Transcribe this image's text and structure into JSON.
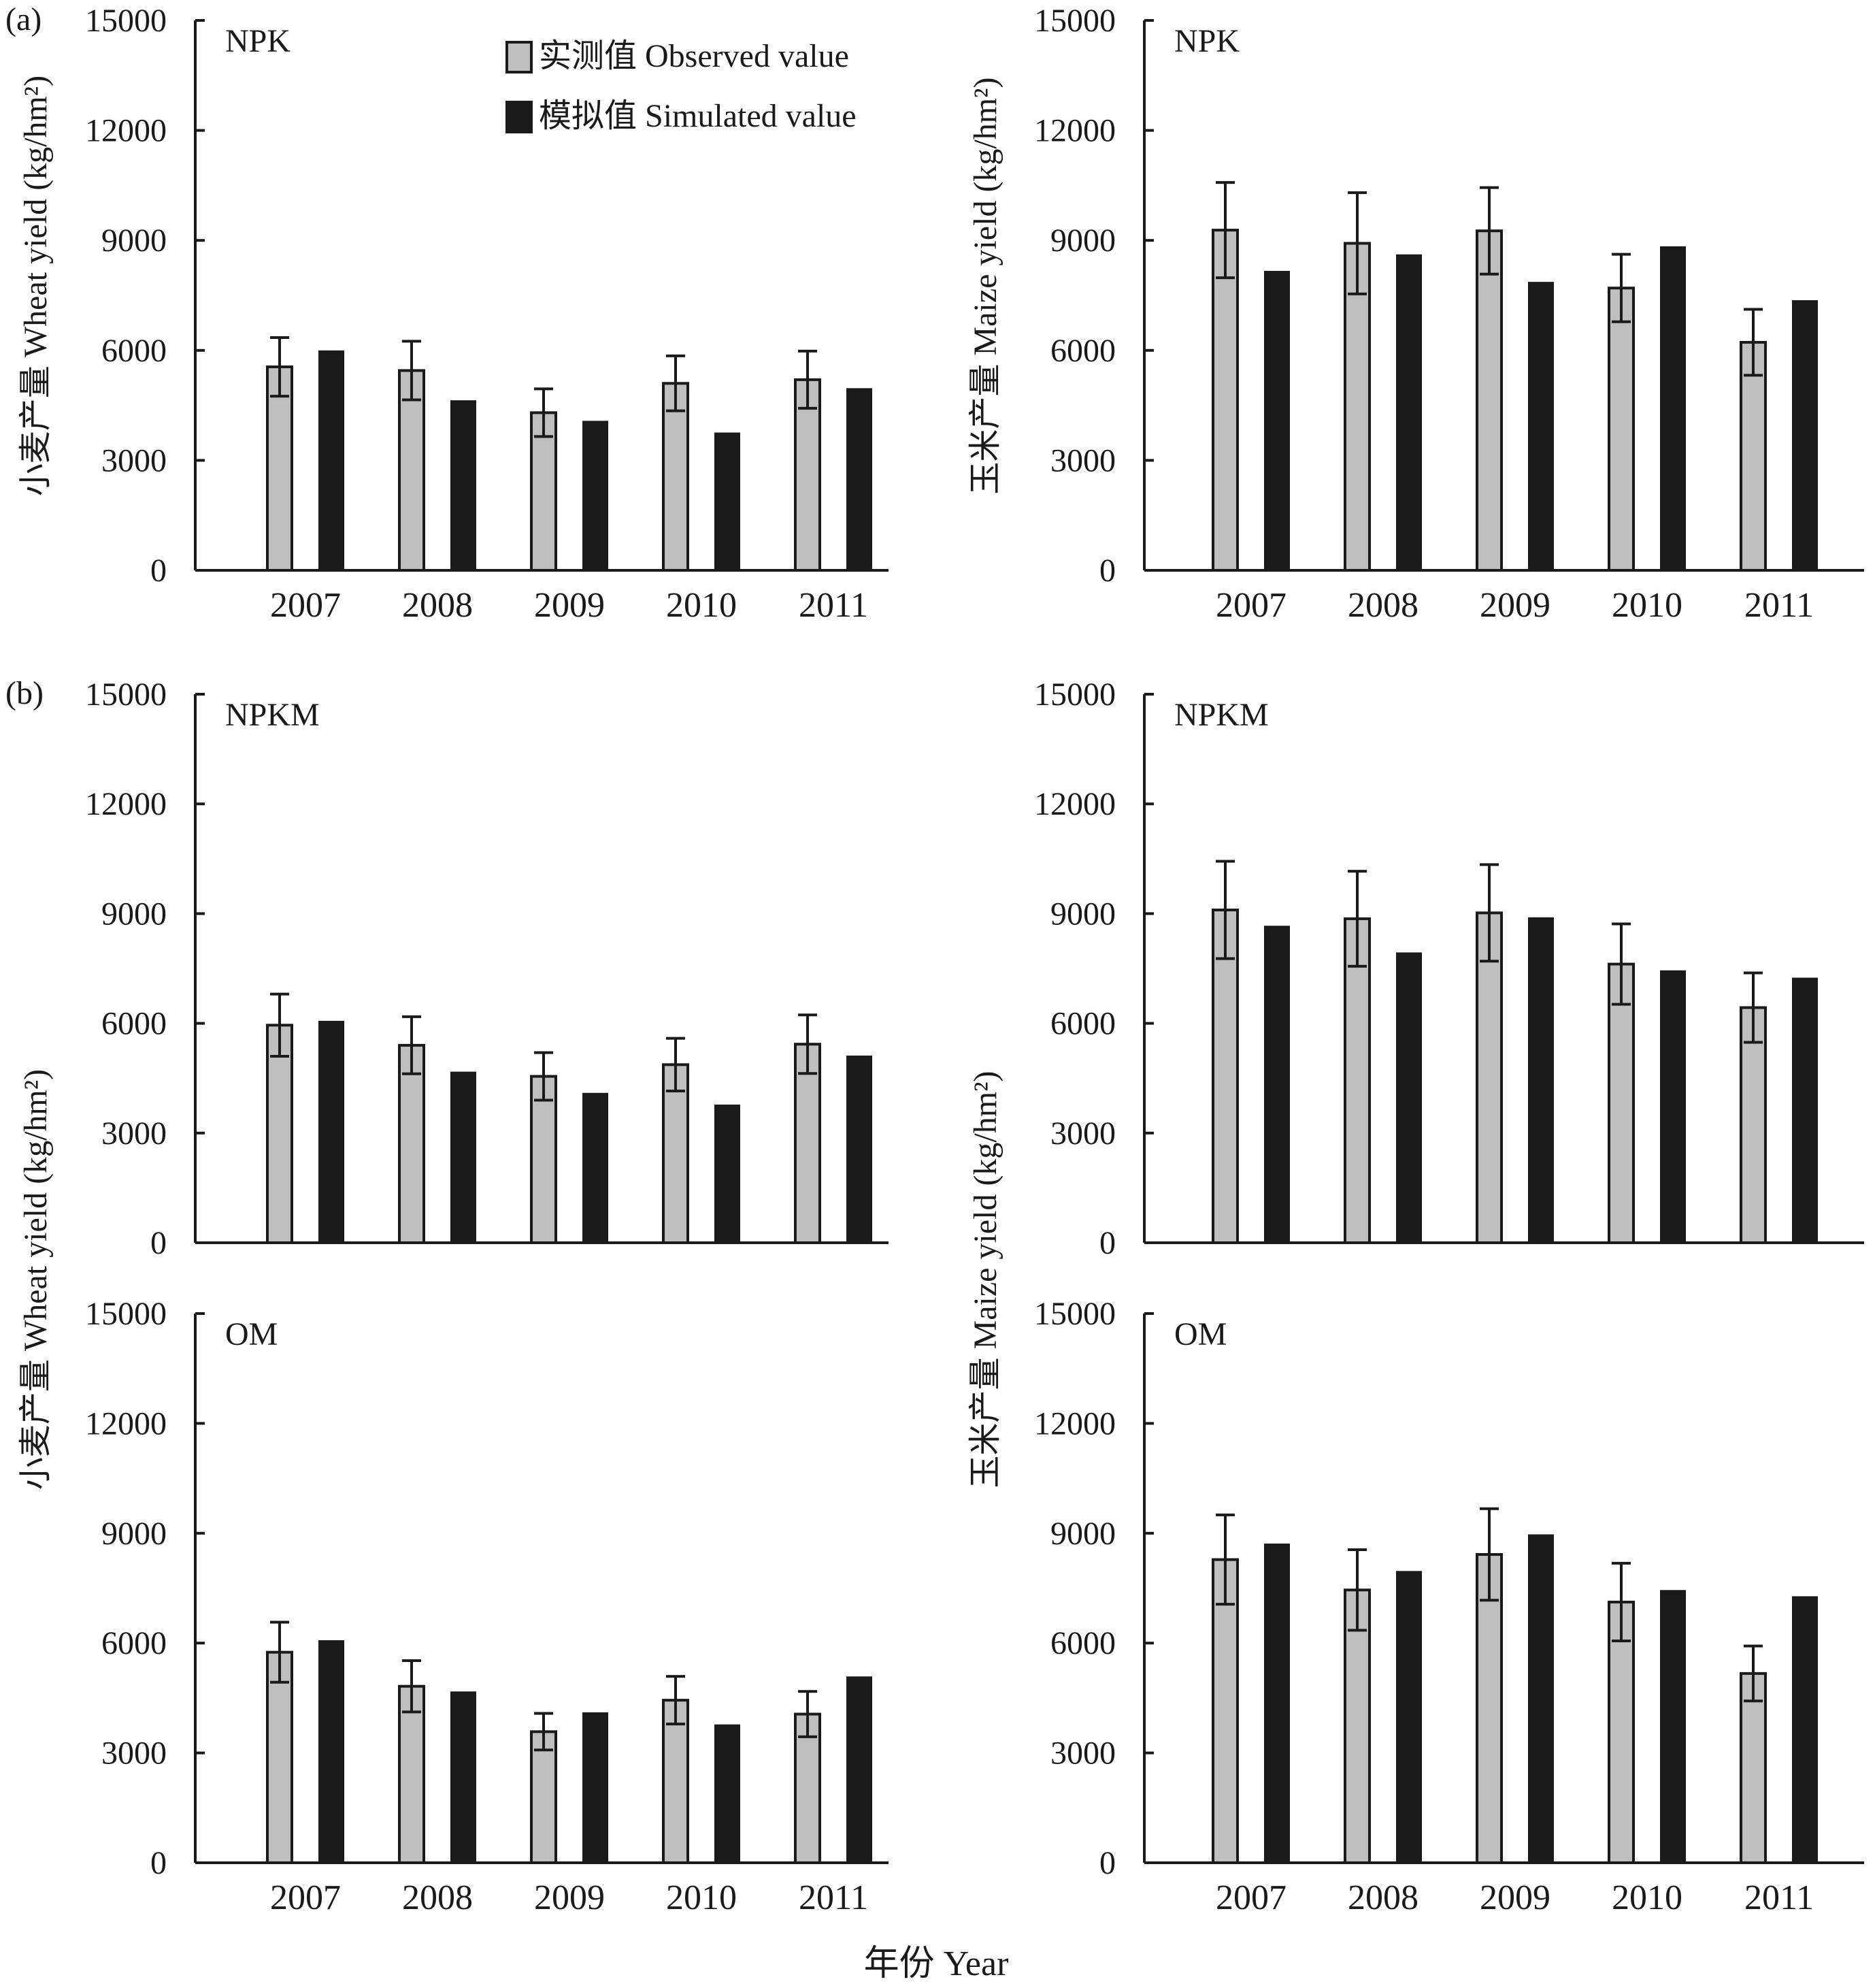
{
  "figure": {
    "x_axis_title": "年份 Year",
    "legend": {
      "observed": "实测值 Observed value",
      "simulated": "模拟值 Simulated value"
    },
    "colors": {
      "observed": "#bfbfbf",
      "simulated": "#1a1a1a",
      "axis": "#1a1a1a"
    },
    "group_labels": [
      "(a)",
      "(b)"
    ],
    "left_ylabel": "小麦产量 Wheat yield (kg/hm²)",
    "right_ylabel": "玉米产量 Maize yield (kg/hm²)"
  },
  "chart_data": [
    {
      "id": "a-wheat",
      "type": "bar",
      "panel_label": "(a)",
      "treatment": "NPK",
      "crop": "wheat",
      "ylabel": "小麦产量 Wheat yield (kg/hm²)",
      "categories": [
        "2007",
        "2008",
        "2009",
        "2010",
        "2011"
      ],
      "ylim": [
        0,
        15000
      ],
      "yticks": [
        0,
        3000,
        6000,
        9000,
        12000,
        15000
      ],
      "series": [
        {
          "name": "实测值 Observed value",
          "values": [
            5550,
            5450,
            4300,
            5100,
            5200
          ],
          "errors": [
            800,
            800,
            650,
            750,
            780
          ]
        },
        {
          "name": "模拟值 Simulated value",
          "values": [
            5980,
            4620,
            4060,
            3740,
            4950
          ]
        }
      ]
    },
    {
      "id": "a-maize",
      "type": "bar",
      "panel_label": "",
      "treatment": "NPK",
      "crop": "maize",
      "ylabel": "玉米产量 Maize yield (kg/hm²)",
      "categories": [
        "2007",
        "2008",
        "2009",
        "2010",
        "2011"
      ],
      "ylim": [
        0,
        15000
      ],
      "yticks": [
        0,
        3000,
        6000,
        9000,
        12000,
        15000
      ],
      "series": [
        {
          "name": "实测值 Observed value",
          "values": [
            9280,
            8920,
            9260,
            7700,
            6220
          ],
          "errors": [
            1300,
            1380,
            1180,
            920,
            900
          ]
        },
        {
          "name": "模拟值 Simulated value",
          "values": [
            8150,
            8600,
            7850,
            8820,
            7350
          ]
        }
      ]
    },
    {
      "id": "b-wheat-npkm",
      "type": "bar",
      "panel_label": "(b)",
      "treatment": "NPKM",
      "crop": "wheat",
      "ylabel": "",
      "categories": [
        "2007",
        "2008",
        "2009",
        "2010",
        "2011"
      ],
      "ylim": [
        0,
        15000
      ],
      "yticks": [
        0,
        3000,
        6000,
        9000,
        12000,
        15000
      ],
      "series": [
        {
          "name": "实测值 Observed value",
          "values": [
            5950,
            5400,
            4550,
            4870,
            5430
          ],
          "errors": [
            850,
            780,
            650,
            720,
            800
          ]
        },
        {
          "name": "模拟值 Simulated value",
          "values": [
            6050,
            4660,
            4080,
            3760,
            5100
          ]
        }
      ]
    },
    {
      "id": "b-maize-npkm",
      "type": "bar",
      "panel_label": "",
      "treatment": "NPKM",
      "crop": "maize",
      "ylabel": "",
      "categories": [
        "2007",
        "2008",
        "2009",
        "2010",
        "2011"
      ],
      "ylim": [
        0,
        15000
      ],
      "yticks": [
        0,
        3000,
        6000,
        9000,
        12000,
        15000
      ],
      "series": [
        {
          "name": "实测值 Observed value",
          "values": [
            9100,
            8860,
            9020,
            7620,
            6430
          ],
          "errors": [
            1330,
            1300,
            1320,
            1100,
            950
          ]
        },
        {
          "name": "模拟值 Simulated value",
          "values": [
            8650,
            7920,
            8880,
            7430,
            7230
          ]
        }
      ]
    },
    {
      "id": "b-wheat-om",
      "type": "bar",
      "panel_label": "",
      "treatment": "OM",
      "crop": "wheat",
      "ylabel": "",
      "categories": [
        "2007",
        "2008",
        "2009",
        "2010",
        "2011"
      ],
      "ylim": [
        0,
        15000
      ],
      "yticks": [
        0,
        3000,
        6000,
        9000,
        12000,
        15000
      ],
      "series": [
        {
          "name": "实测值 Observed value",
          "values": [
            5750,
            4820,
            3580,
            4440,
            4060
          ],
          "errors": [
            820,
            700,
            500,
            650,
            620
          ]
        },
        {
          "name": "模拟值 Simulated value",
          "values": [
            6060,
            4660,
            4090,
            3760,
            5070
          ]
        }
      ]
    },
    {
      "id": "b-maize-om",
      "type": "bar",
      "panel_label": "",
      "treatment": "OM",
      "crop": "maize",
      "ylabel": "",
      "categories": [
        "2007",
        "2008",
        "2009",
        "2010",
        "2011"
      ],
      "ylim": [
        0,
        15000
      ],
      "yticks": [
        0,
        3000,
        6000,
        9000,
        12000,
        15000
      ],
      "series": [
        {
          "name": "实测值 Observed value",
          "values": [
            8280,
            7450,
            8420,
            7120,
            5170
          ],
          "errors": [
            1220,
            1100,
            1250,
            1060,
            750
          ]
        },
        {
          "name": "模拟值 Simulated value",
          "values": [
            8700,
            7950,
            8950,
            7430,
            7260
          ]
        }
      ]
    }
  ]
}
